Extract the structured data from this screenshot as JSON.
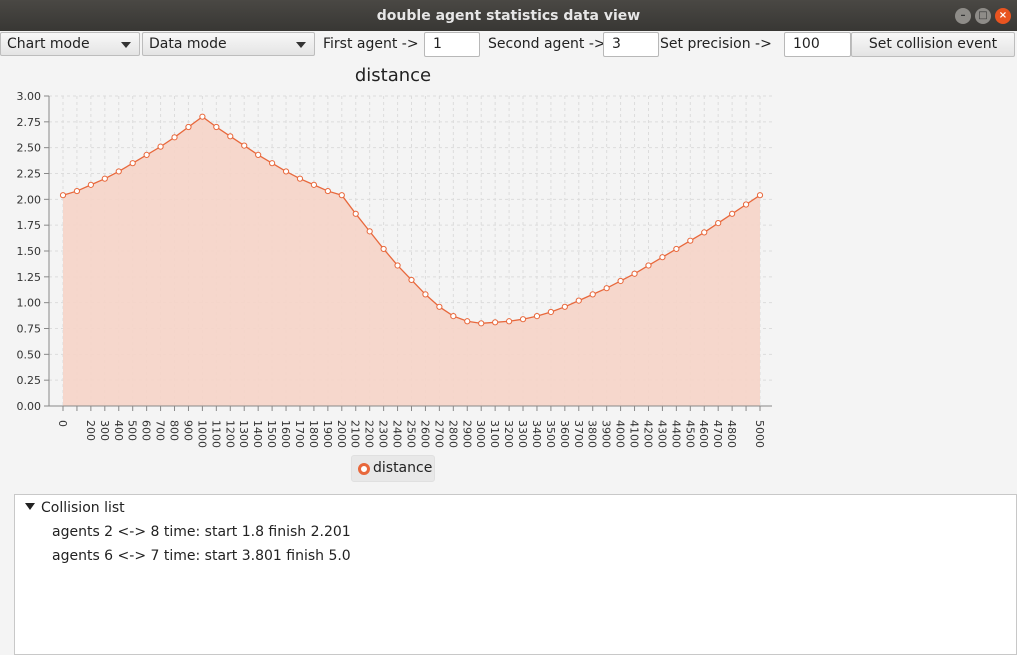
{
  "window": {
    "title": "double agent statistics data view"
  },
  "toolbar": {
    "chart_mode": "Chart mode",
    "data_mode": "Data mode",
    "first_agent_label": "First agent ->",
    "first_agent_value": "1",
    "second_agent_label": "Second agent ->",
    "second_agent_value": "3",
    "precision_label": "Set precision ->",
    "precision_value": "100",
    "collision_button": "Set collision event"
  },
  "chart_data": {
    "type": "area",
    "title": "distance",
    "xlabel": "",
    "ylabel": "",
    "ylim": [
      0,
      3
    ],
    "yticks": [
      "0.00",
      "0.25",
      "0.50",
      "0.75",
      "1.00",
      "1.25",
      "1.50",
      "1.75",
      "2.00",
      "2.25",
      "2.50",
      "2.75",
      "3.00"
    ],
    "x": [
      0,
      100,
      200,
      300,
      400,
      500,
      600,
      700,
      800,
      900,
      1000,
      1100,
      1200,
      1300,
      1400,
      1500,
      1600,
      1700,
      1800,
      1900,
      2000,
      2100,
      2200,
      2300,
      2400,
      2500,
      2600,
      2700,
      2800,
      2900,
      3000,
      3100,
      3200,
      3300,
      3400,
      3500,
      3600,
      3700,
      3800,
      3900,
      4000,
      4100,
      4200,
      4300,
      4400,
      4500,
      4600,
      4700,
      4800,
      4900,
      5000
    ],
    "xtick_labels": [
      "0",
      "200",
      "300",
      "400",
      "500",
      "600",
      "700",
      "800",
      "900",
      "1000",
      "1100",
      "1200",
      "1300",
      "1400",
      "1500",
      "1600",
      "1700",
      "1800",
      "1900",
      "2000",
      "2100",
      "2200",
      "2300",
      "2400",
      "2500",
      "2600",
      "2700",
      "2800",
      "2900",
      "3000",
      "3100",
      "3200",
      "3300",
      "3400",
      "3500",
      "3600",
      "3700",
      "3800",
      "3900",
      "4000",
      "4100",
      "4200",
      "4300",
      "4400",
      "4500",
      "4600",
      "4700",
      "4800",
      "5000"
    ],
    "series": [
      {
        "name": "distance",
        "values": [
          2.04,
          2.08,
          2.14,
          2.2,
          2.27,
          2.35,
          2.43,
          2.51,
          2.6,
          2.7,
          2.8,
          2.7,
          2.61,
          2.52,
          2.43,
          2.35,
          2.27,
          2.2,
          2.14,
          2.08,
          2.04,
          1.86,
          1.69,
          1.52,
          1.36,
          1.22,
          1.08,
          0.96,
          0.87,
          0.82,
          0.8,
          0.81,
          0.82,
          0.84,
          0.87,
          0.91,
          0.96,
          1.02,
          1.08,
          1.14,
          1.21,
          1.28,
          1.36,
          1.44,
          1.52,
          1.6,
          1.68,
          1.77,
          1.86,
          1.95,
          2.04
        ]
      }
    ],
    "grid": true,
    "legend": "bottom-center"
  },
  "legend": {
    "label": "distance"
  },
  "collision_list": {
    "root": "Collision list",
    "items": [
      "agents 2 <-> 8 time: start 1.8 finish 2.201",
      "agents 6 <-> 7 time: start 3.801 finish 5.0"
    ]
  },
  "colors": {
    "line": "#e8683c",
    "fill": "#f6d4c8",
    "accent": "#e95420"
  }
}
